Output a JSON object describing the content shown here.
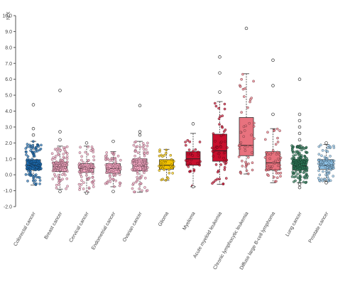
{
  "chart_data": {
    "type": "box",
    "ylabel": "N/X",
    "ylim": [
      -2.0,
      10.0
    ],
    "yticks": [
      "10.0",
      "9.0",
      "8.0",
      "7.0",
      "6.0",
      "5.0",
      "4.0",
      "3.0",
      "2.0",
      "1.0",
      "0.0",
      "-1.0",
      "-2.0"
    ],
    "grid": false,
    "categories": [
      "Colorectal cancer",
      "Breast cancer",
      "Cervical cancer",
      "Endometrial cancer",
      "Ovarian cancer",
      "Glioma",
      "Myeloma",
      "Acute myeloid leukemia",
      "Chronic lymphocytic leukemia",
      "Diffuse large B-cell lymphoma",
      "Lung cancer",
      "Prostate cancer"
    ],
    "boxes": [
      {
        "min": -0.65,
        "q1": 0.3,
        "median": 0.6,
        "q3": 0.95,
        "max": 2.1,
        "outliers": [
          2.5,
          2.9,
          4.4
        ],
        "count": 120
      },
      {
        "min": -0.9,
        "q1": 0.2,
        "median": 0.5,
        "q3": 0.8,
        "max": 1.8,
        "outliers": [
          2.2,
          2.7,
          5.3,
          -1.05
        ],
        "count": 110
      },
      {
        "min": -1.1,
        "q1": 0.15,
        "median": 0.4,
        "q3": 0.7,
        "max": 1.8,
        "outliers": [
          2.0,
          -1.15
        ],
        "count": 90
      },
      {
        "min": -0.75,
        "q1": 0.1,
        "median": 0.4,
        "q3": 0.7,
        "max": 1.45,
        "outliers": [
          2.1,
          -1.05
        ],
        "count": 80
      },
      {
        "min": -1.1,
        "q1": 0.25,
        "median": 0.55,
        "q3": 1.0,
        "max": 2.1,
        "outliers": [
          2.5,
          2.7,
          4.35
        ],
        "count": 110
      },
      {
        "min": -0.35,
        "q1": 0.35,
        "median": 0.6,
        "q3": 0.95,
        "max": 1.6,
        "outliers": [],
        "count": 35
      },
      {
        "min": -0.75,
        "q1": 0.6,
        "median": 1.0,
        "q3": 1.45,
        "max": 2.6,
        "outliers": [
          3.2,
          -0.75
        ],
        "count": 30
      },
      {
        "min": -0.6,
        "q1": 0.85,
        "median": 1.5,
        "q3": 2.55,
        "max": 4.6,
        "outliers": [
          5.2,
          6.4,
          7.4
        ],
        "count": 55
      },
      {
        "min": 0.05,
        "q1": 1.2,
        "median": 1.85,
        "q3": 3.6,
        "max": 6.35,
        "outliers": [
          9.2
        ],
        "count": 50
      },
      {
        "min": -0.5,
        "q1": 0.3,
        "median": 0.75,
        "q3": 1.45,
        "max": 2.9,
        "outliers": [
          3.8,
          5.6,
          7.2
        ],
        "count": 50
      },
      {
        "min": -0.5,
        "q1": 0.3,
        "median": 0.55,
        "q3": 0.95,
        "max": 1.85,
        "outliers": [
          2.2,
          2.6,
          3.0,
          3.4,
          3.8,
          6.0,
          -0.6,
          -0.8
        ],
        "count": 150
      },
      {
        "min": -0.4,
        "q1": 0.35,
        "median": 0.6,
        "q3": 0.95,
        "max": 1.9,
        "outliers": [
          2.0,
          -0.5
        ],
        "count": 80
      }
    ],
    "colors": [
      "#1f6fb5",
      "#f4a6c2",
      "#f4a6c2",
      "#f4a6c2",
      "#f4a6c2",
      "#f2c200",
      "#c8102e",
      "#c8102e",
      "#e8727e",
      "#e8727e",
      "#2f7d5b",
      "#8fc2e6"
    ]
  }
}
